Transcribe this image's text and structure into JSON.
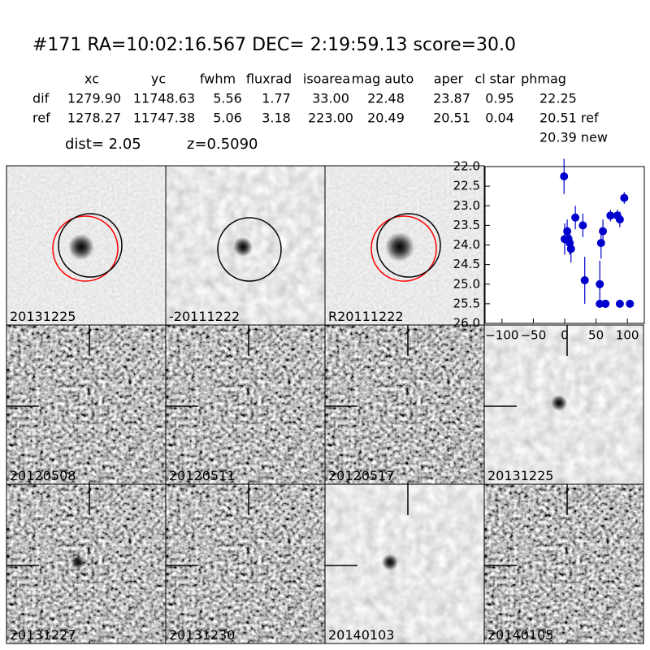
{
  "header": {
    "title": "#171   RA=10:02:16.567 DEC= 2:19:59.13      score=30.0"
  },
  "table": {
    "columns": [
      "xc",
      "yc",
      "fwhm",
      "fluxrad",
      "isoarea",
      "mag auto",
      "aper",
      "cl star",
      "phmag"
    ],
    "rows": [
      {
        "label": "dif",
        "values": [
          "1279.90",
          "11748.63",
          "5.56",
          "1.77",
          "33.00",
          "22.48",
          "23.87",
          "0.95",
          "22.25"
        ]
      },
      {
        "label": "ref",
        "values": [
          "1278.27",
          "11747.38",
          "5.06",
          "3.18",
          "223.00",
          "20.49",
          "20.51",
          "0.04",
          "20.51 ref"
        ]
      }
    ],
    "extra": "20.39 new"
  },
  "info": {
    "dist": "dist=  2.05",
    "z": "z=0.5090"
  },
  "tiles": [
    {
      "label": "20131225"
    },
    {
      "label": "-20111222"
    },
    {
      "label": "R20111222"
    },
    {
      "label": "20120508"
    },
    {
      "label": "20120511"
    },
    {
      "label": "20120517"
    },
    {
      "label": "20131225",
      "label_color": "#ff0000"
    },
    {
      "label": "20131227"
    },
    {
      "label": "20131230"
    },
    {
      "label": "20140103"
    },
    {
      "label": "20140105"
    }
  ],
  "chart_data": {
    "type": "errorbar",
    "color": "#0000cc",
    "x": [
      -1,
      0,
      4,
      6,
      8,
      10,
      17,
      29,
      32,
      56,
      58,
      61,
      65,
      73,
      84,
      88,
      95,
      56,
      65,
      88,
      104
    ],
    "values": [
      22.25,
      23.85,
      23.65,
      23.85,
      23.95,
      24.1,
      23.3,
      23.5,
      24.9,
      25.0,
      23.95,
      23.65,
      25.5,
      23.25,
      23.25,
      23.35,
      22.8,
      25.5,
      25.5,
      25.5,
      25.5
    ],
    "errors": [
      0.45,
      0.4,
      0.3,
      0.3,
      0.3,
      0.35,
      0.3,
      0.3,
      0.6,
      0.6,
      0.4,
      0.3,
      0.1,
      0.15,
      0.15,
      0.2,
      0.15,
      0.1,
      0.1,
      0.1,
      0.1
    ],
    "xlim": [
      -127,
      127
    ],
    "ylim": [
      26.0,
      22.0
    ],
    "xticks": [
      {
        "value": -100,
        "label": "−100"
      },
      {
        "value": -50,
        "label": "−50"
      },
      0,
      50,
      100
    ],
    "yticks": [
      {
        "value": 22,
        "label": "22.0"
      },
      {
        "value": 22.5,
        "label": "22.5"
      },
      {
        "value": 23,
        "label": "23.0"
      },
      {
        "value": 23.5,
        "label": "23.5"
      },
      {
        "value": 24,
        "label": "24.0"
      },
      {
        "value": 24.5,
        "label": "24.5"
      },
      {
        "value": 25,
        "label": "25.0"
      },
      {
        "value": 25.5,
        "label": "25.5"
      },
      {
        "value": 26,
        "label": "26.0"
      }
    ]
  }
}
